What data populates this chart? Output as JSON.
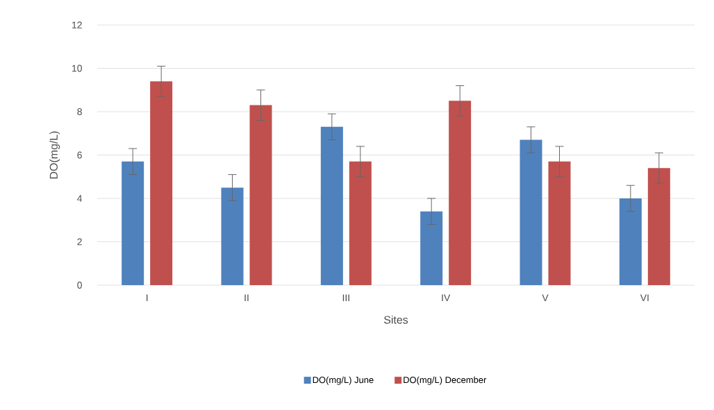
{
  "chart_data": {
    "type": "bar",
    "xlabel": "Sites",
    "ylabel": "DO(mg/L)",
    "categories": [
      "I",
      "II",
      "III",
      "IV",
      "V",
      "VI"
    ],
    "series": [
      {
        "name": "DO(mg/L) June",
        "color": "#4f81bd",
        "values": [
          5.7,
          4.5,
          7.3,
          3.4,
          6.7,
          4.0
        ],
        "errors": [
          0.6,
          0.6,
          0.6,
          0.6,
          0.6,
          0.6
        ]
      },
      {
        "name": "DO(mg/L) December",
        "color": "#c0504d",
        "values": [
          9.4,
          8.3,
          5.7,
          8.5,
          5.7,
          5.4
        ],
        "errors": [
          0.7,
          0.7,
          0.7,
          0.7,
          0.7,
          0.7
        ]
      }
    ],
    "ylim": [
      0,
      12
    ],
    "yticks": [
      0,
      2,
      4,
      6,
      8,
      10,
      12
    ],
    "grid": "y",
    "legend": "bottom"
  }
}
